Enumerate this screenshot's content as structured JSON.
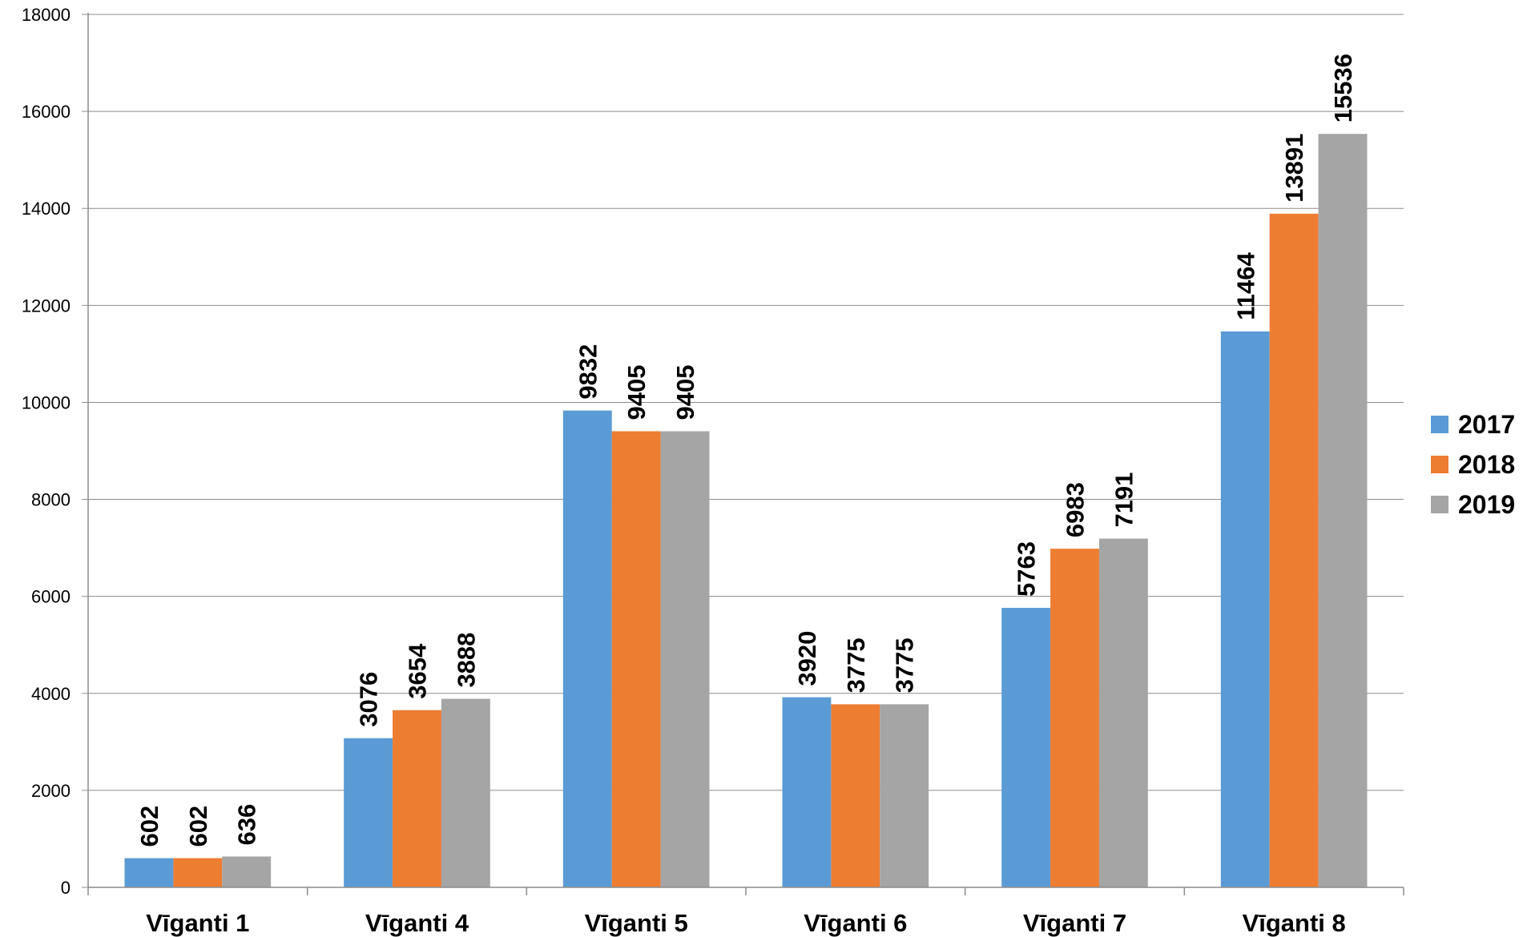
{
  "chart_data": {
    "type": "bar",
    "categories": [
      "Vīganti 1",
      "Vīganti 4",
      "Vīganti 5",
      "Vīganti 6",
      "Vīganti 7",
      "Vīganti 8"
    ],
    "series": [
      {
        "name": "2017",
        "color": "#5B9BD5",
        "values": [
          602,
          3076,
          9832,
          3920,
          5763,
          11464
        ]
      },
      {
        "name": "2018",
        "color": "#ED7D31",
        "values": [
          602,
          3654,
          9405,
          3775,
          6983,
          13891
        ]
      },
      {
        "name": "2019",
        "color": "#A5A5A5",
        "values": [
          636,
          3888,
          9405,
          3775,
          7191,
          15536
        ]
      }
    ],
    "yticks": [
      "0",
      "2000",
      "4000",
      "6000",
      "8000",
      "10000",
      "12000",
      "14000",
      "16000",
      "18000"
    ],
    "ylim": [
      0,
      18000
    ],
    "ytick_step": 2000,
    "grid": true,
    "legend_position": "right",
    "data_labels": true
  }
}
